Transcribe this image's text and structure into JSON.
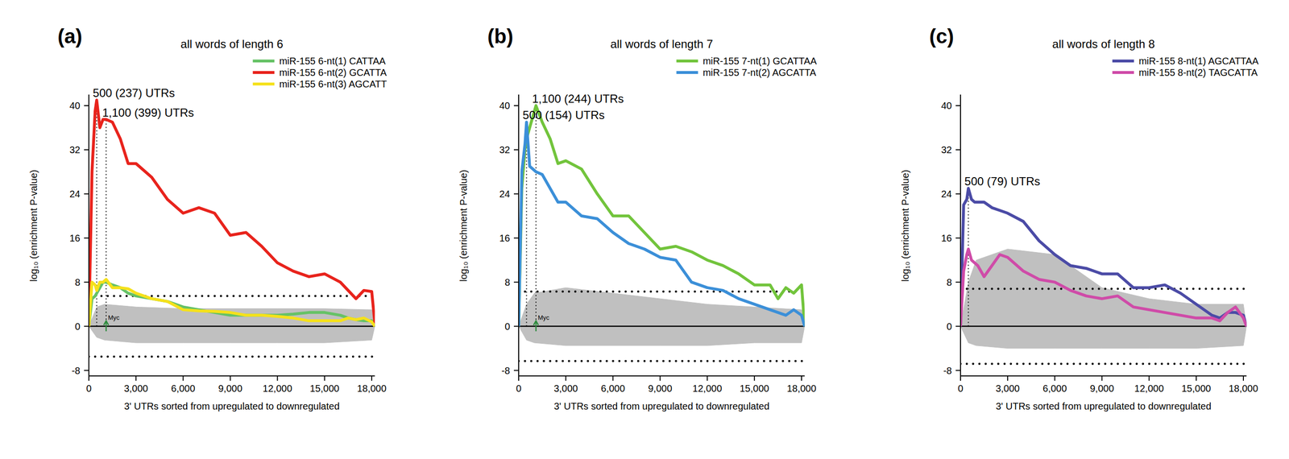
{
  "chart_data": [
    {
      "type": "line",
      "label": "(a)",
      "title": "all words of length 6",
      "x_label": "3' UTRs sorted from upregulated to downregulated",
      "y_label": "log₁₀ (enrichment P-value)",
      "x": [
        0,
        200,
        400,
        500,
        700,
        900,
        1100,
        1500,
        2000,
        2500,
        3000,
        4000,
        5000,
        6000,
        7000,
        8000,
        9000,
        10000,
        11000,
        12000,
        13000,
        14000,
        15000,
        16000,
        16500,
        17000,
        17500,
        18000,
        18200
      ],
      "series": [
        {
          "name": "miR-155 6-nt(1) CATTAA",
          "color": "#66c266",
          "values": [
            0,
            5,
            5.5,
            6,
            7,
            8,
            8,
            7.5,
            7,
            6,
            5.5,
            5,
            4.5,
            3.5,
            3,
            2.5,
            2,
            2,
            2,
            2,
            2.2,
            2.5,
            2.5,
            2,
            1.5,
            1.2,
            1,
            1,
            0
          ]
        },
        {
          "name": "miR-155 6-nt(2) GCATTA",
          "color": "#e8231c",
          "values": [
            0,
            28,
            39,
            41,
            36,
            37.5,
            37.5,
            37,
            34,
            29.5,
            29.5,
            27,
            23,
            20.5,
            21.5,
            20.5,
            16.5,
            17,
            14.5,
            11.5,
            10,
            9,
            9.5,
            8,
            6.5,
            5,
            6.5,
            6.3,
            0.5
          ]
        },
        {
          "name": "miR-155 6-nt(3) AGCATT",
          "color": "#f5e11c",
          "values": [
            0,
            8,
            7.5,
            6.5,
            8,
            8,
            8.5,
            7,
            7,
            6.8,
            6,
            5,
            4.5,
            3,
            2.8,
            2.7,
            2.5,
            2,
            2,
            1.8,
            1.5,
            1,
            1,
            1,
            1.5,
            1.2,
            1.5,
            0.8,
            0
          ]
        }
      ],
      "background_band": {
        "color": "#c0c0c0",
        "x": [
          0,
          500,
          1000,
          3000,
          6000,
          9000,
          12000,
          15000,
          18000,
          18200
        ],
        "upper": [
          0,
          3.5,
          4,
          3.5,
          3.2,
          3.2,
          3.2,
          3.2,
          3,
          0
        ],
        "lower": [
          0,
          -2,
          -2.5,
          -3,
          -3,
          -3,
          -3,
          -3,
          -2.5,
          0
        ]
      },
      "thresholds": [
        5.5,
        -5.5
      ],
      "annotations": [
        {
          "text": "500 (237) UTRs",
          "x": 500,
          "y": 41,
          "line_style": "dotted"
        },
        {
          "text": "1,100 (399) UTRs",
          "x": 1100,
          "y": 37.5,
          "line_style": "dotted"
        },
        {
          "text": "Myc",
          "x": 1100,
          "y": 1,
          "marker": "arrow",
          "color": "#2e8b3e"
        }
      ],
      "xlim": [
        0,
        18200
      ],
      "ylim": [
        -9,
        42
      ],
      "xticks": [
        0,
        {
          "value": 3000,
          "label": "3,000"
        },
        {
          "value": 6000,
          "label": "6,000"
        },
        {
          "value": 9000,
          "label": "9,000"
        },
        {
          "value": 12000,
          "label": "12,000"
        },
        {
          "value": 15000,
          "label": "15,000"
        },
        {
          "value": 18000,
          "label": "18,000"
        }
      ],
      "yticks": [
        -8,
        0,
        8,
        16,
        24,
        32,
        40
      ],
      "legend": "upper right",
      "grid": false
    },
    {
      "type": "line",
      "label": "(b)",
      "title": "all words of length 7",
      "x_label": "3' UTRs sorted from upregulated to downregulated",
      "y_label": "log₁₀ (enrichment P-value)",
      "x": [
        0,
        200,
        400,
        500,
        700,
        900,
        1100,
        1500,
        2000,
        2500,
        3000,
        4000,
        5000,
        6000,
        7000,
        8000,
        9000,
        10000,
        11000,
        12000,
        13000,
        14000,
        15000,
        16000,
        16500,
        17000,
        17500,
        18000,
        18200
      ],
      "series": [
        {
          "name": "miR-155 7-nt(1) GCATTAA",
          "color": "#72c43c",
          "values": [
            0,
            25,
            32,
            34,
            36,
            38,
            40,
            37,
            34,
            29.5,
            30,
            28.5,
            24,
            20,
            20,
            17,
            14,
            14.5,
            13.5,
            12,
            11,
            9.5,
            7.5,
            7.5,
            5,
            7,
            6,
            7.5,
            0
          ]
        },
        {
          "name": "miR-155 7-nt(2) AGCATTA",
          "color": "#3b8fd8",
          "values": [
            0,
            28,
            33,
            37,
            29,
            28.5,
            28,
            27.5,
            25,
            22.5,
            22.5,
            20,
            19.5,
            17,
            15,
            14,
            12.5,
            12,
            8,
            7,
            6.5,
            5,
            4,
            3,
            2.5,
            2,
            3,
            2,
            0
          ]
        }
      ],
      "background_band": {
        "color": "#c0c0c0",
        "x": [
          0,
          500,
          1000,
          3000,
          6000,
          9000,
          12000,
          15000,
          18000,
          18200
        ],
        "upper": [
          0,
          4,
          6,
          7,
          6,
          5,
          4,
          3.5,
          3,
          0
        ],
        "lower": [
          0,
          -2.5,
          -3,
          -3.5,
          -3.5,
          -3.5,
          -3.5,
          -3,
          -3,
          0
        ]
      },
      "thresholds": [
        6.3,
        -6.3
      ],
      "annotations": [
        {
          "text": "1,100 (244) UTRs",
          "x": 1100,
          "y": 40,
          "line_style": "dotted"
        },
        {
          "text": "500 (154) UTRs",
          "x": 500,
          "y": 37,
          "line_style": "dotted"
        },
        {
          "text": "Myc",
          "x": 1100,
          "y": 1,
          "marker": "arrow",
          "color": "#2e8b3e"
        }
      ],
      "xlim": [
        0,
        18200
      ],
      "ylim": [
        -9,
        42
      ],
      "xticks": [
        0,
        {
          "value": 3000,
          "label": "3,000"
        },
        {
          "value": 6000,
          "label": "6,000"
        },
        {
          "value": 9000,
          "label": "9,000"
        },
        {
          "value": 12000,
          "label": "12,000"
        },
        {
          "value": 15000,
          "label": "15,000"
        },
        {
          "value": 18000,
          "label": "18,000"
        }
      ],
      "yticks": [
        -8,
        0,
        8,
        16,
        24,
        32,
        40
      ],
      "legend": "upper right",
      "grid": false
    },
    {
      "type": "line",
      "label": "(c)",
      "title": "all words of length 8",
      "x_label": "3' UTRs sorted from upregulated to downregulated",
      "y_label": "log₁₀ (enrichment P-value)",
      "x": [
        0,
        200,
        400,
        500,
        700,
        900,
        1100,
        1500,
        2000,
        2500,
        3000,
        4000,
        5000,
        6000,
        7000,
        8000,
        9000,
        10000,
        11000,
        12000,
        13000,
        14000,
        15000,
        16000,
        16500,
        17000,
        17500,
        18000,
        18200
      ],
      "series": [
        {
          "name": "miR-155 8-nt(1) AGCATTAA",
          "color": "#4b4ba6",
          "values": [
            0,
            22,
            23,
            25,
            23,
            22.5,
            22.5,
            22.5,
            21.5,
            21,
            20.5,
            19,
            15.5,
            13,
            11,
            10.5,
            9.5,
            9.5,
            7,
            7,
            7.5,
            6,
            4,
            2,
            1.5,
            2.5,
            2.5,
            2,
            0
          ]
        },
        {
          "name": "miR-155 8-nt(2) TAGCATTA",
          "color": "#cf4ba8",
          "values": [
            0,
            10,
            13,
            14,
            12,
            11.5,
            11,
            9,
            11,
            13,
            12.5,
            10,
            8.5,
            8,
            6.5,
            5.5,
            5,
            5.5,
            3.5,
            3,
            2.5,
            2,
            1.5,
            1.5,
            1,
            2.5,
            3.5,
            1.5,
            0
          ]
        }
      ],
      "background_band": {
        "color": "#c0c0c0",
        "x": [
          0,
          500,
          1000,
          3000,
          6000,
          9000,
          12000,
          15000,
          18000,
          18200
        ],
        "upper": [
          0,
          8,
          12,
          14,
          13,
          7,
          5,
          4,
          4,
          0
        ],
        "lower": [
          0,
          -3,
          -3.5,
          -4,
          -4,
          -4,
          -4,
          -4,
          -3.5,
          0
        ]
      },
      "thresholds": [
        6.8,
        -6.8
      ],
      "annotations": [
        {
          "text": "500 (79) UTRs",
          "x": 500,
          "y": 25,
          "line_style": "dotted"
        }
      ],
      "xlim": [
        0,
        18200
      ],
      "ylim": [
        -9,
        42
      ],
      "xticks": [
        0,
        {
          "value": 3000,
          "label": "3,000"
        },
        {
          "value": 6000,
          "label": "6,000"
        },
        {
          "value": 9000,
          "label": "9,000"
        },
        {
          "value": 12000,
          "label": "12,000"
        },
        {
          "value": 15000,
          "label": "15,000"
        },
        {
          "value": 18000,
          "label": "18,000"
        }
      ],
      "yticks": [
        -8,
        0,
        8,
        16,
        24,
        32,
        40
      ],
      "legend": "upper right",
      "grid": false
    }
  ]
}
